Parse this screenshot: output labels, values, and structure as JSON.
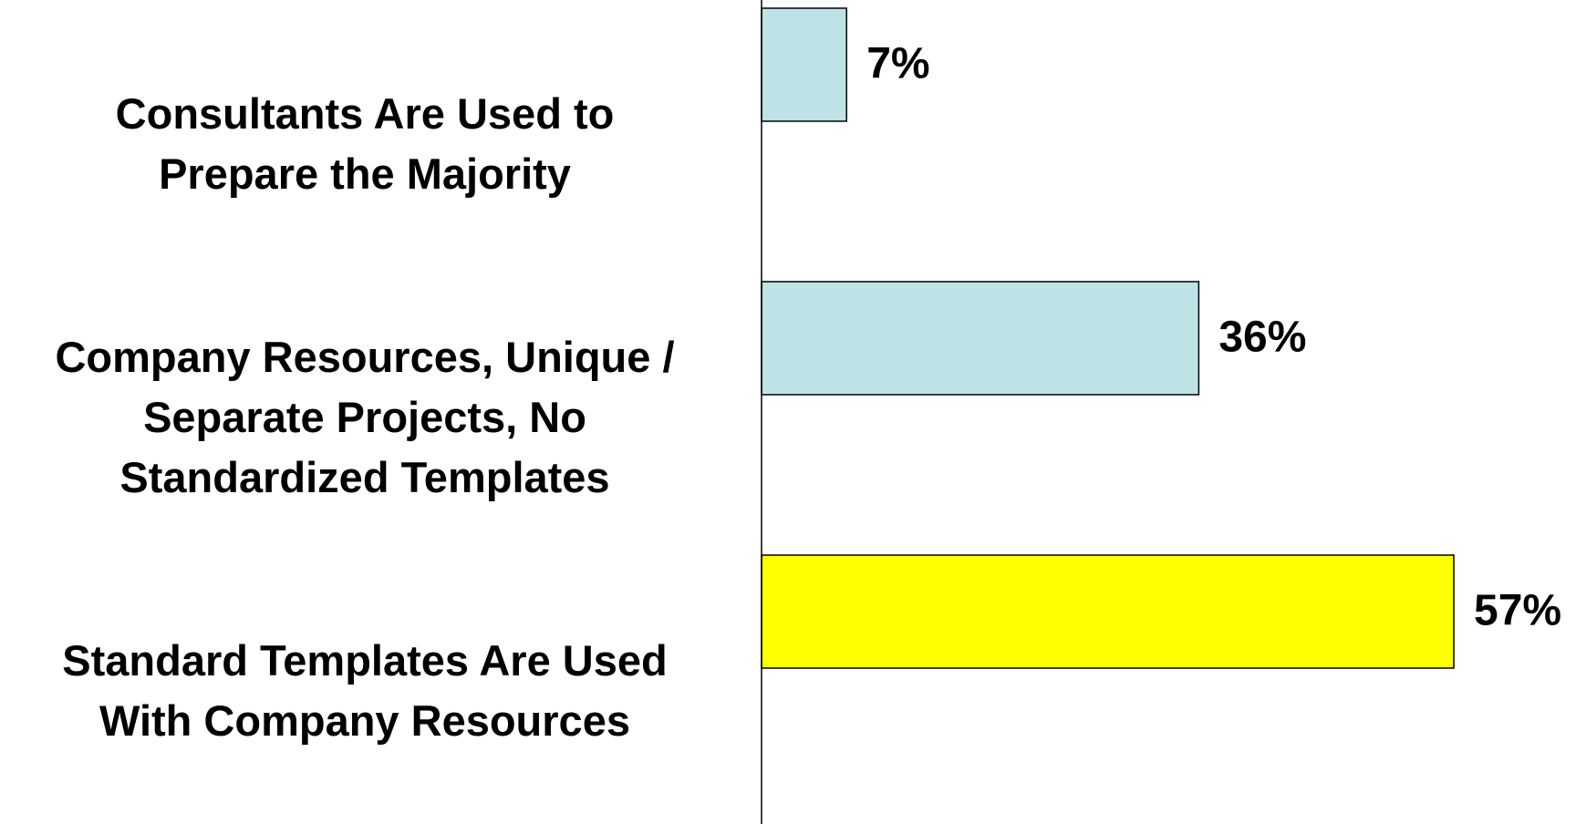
{
  "chart_data": {
    "type": "bar",
    "orientation": "horizontal",
    "categories": [
      "Consultants Are Used to\nPrepare the Majority",
      "Company Resources, Unique /\nSeparate Projects, No\nStandardized Templates",
      "Standard Templates Are Used\nWith Company Resources"
    ],
    "values": [
      7,
      36,
      57
    ],
    "value_labels": [
      "7%",
      "36%",
      "57%"
    ],
    "colors": [
      "#bde3e6",
      "#bde3e6",
      "#ffff00"
    ]
  }
}
